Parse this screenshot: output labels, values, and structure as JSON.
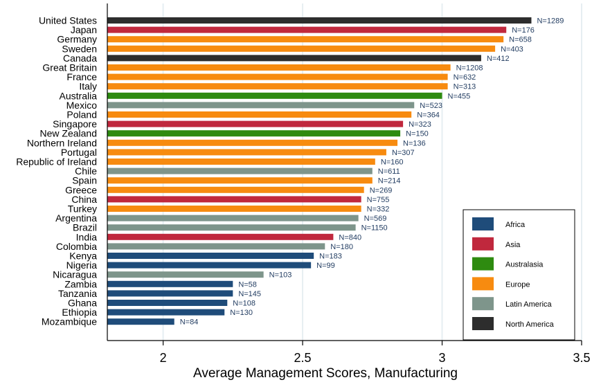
{
  "chart_data": {
    "type": "bar",
    "orientation": "horizontal",
    "xlabel": "Average Management Scores, Manufacturing",
    "ylabel": "",
    "xlim": [
      1.8,
      3.5
    ],
    "xticks": [
      2,
      2.5,
      3,
      3.5
    ],
    "xtick_labels": [
      "2",
      "2.5",
      "3",
      "3.5"
    ],
    "grid": "vertical",
    "legend_position": "bottom-right",
    "colors": {
      "Africa": "#1f4c7a",
      "Asia": "#c0283d",
      "Australasia": "#2e8b10",
      "Europe": "#f78b10",
      "Latin America": "#7e958b",
      "North America": "#2d2d2d"
    },
    "legend": [
      "Africa",
      "Asia",
      "Australasia",
      "Europe",
      "Latin America",
      "North America"
    ],
    "bars": [
      {
        "country": "United States",
        "value": 3.32,
        "n_label": "N=1289",
        "region": "North America"
      },
      {
        "country": "Japan",
        "value": 3.23,
        "n_label": "N=176",
        "region": "Asia"
      },
      {
        "country": "Germany",
        "value": 3.22,
        "n_label": "N=658",
        "region": "Europe"
      },
      {
        "country": "Sweden",
        "value": 3.19,
        "n_label": "N=403",
        "region": "Europe"
      },
      {
        "country": "Canada",
        "value": 3.14,
        "n_label": "N=412",
        "region": "North America"
      },
      {
        "country": "Great Britain",
        "value": 3.03,
        "n_label": "N=1208",
        "region": "Europe"
      },
      {
        "country": "France",
        "value": 3.02,
        "n_label": "N=632",
        "region": "Europe"
      },
      {
        "country": "Italy",
        "value": 3.02,
        "n_label": "N=313",
        "region": "Europe"
      },
      {
        "country": "Australia",
        "value": 3.0,
        "n_label": "N=455",
        "region": "Australasia"
      },
      {
        "country": "Mexico",
        "value": 2.9,
        "n_label": "N=523",
        "region": "Latin America"
      },
      {
        "country": "Poland",
        "value": 2.89,
        "n_label": "N=364",
        "region": "Europe"
      },
      {
        "country": "Singapore",
        "value": 2.86,
        "n_label": "N=323",
        "region": "Asia"
      },
      {
        "country": "New Zealand",
        "value": 2.85,
        "n_label": "N=150",
        "region": "Australasia"
      },
      {
        "country": "Northern Ireland",
        "value": 2.84,
        "n_label": "N=136",
        "region": "Europe"
      },
      {
        "country": "Portugal",
        "value": 2.8,
        "n_label": "N=307",
        "region": "Europe"
      },
      {
        "country": "Republic of Ireland",
        "value": 2.76,
        "n_label": "N=160",
        "region": "Europe"
      },
      {
        "country": "Chile",
        "value": 2.75,
        "n_label": "N=611",
        "region": "Latin America"
      },
      {
        "country": "Spain",
        "value": 2.75,
        "n_label": "N=214",
        "region": "Europe"
      },
      {
        "country": "Greece",
        "value": 2.72,
        "n_label": "N=269",
        "region": "Europe"
      },
      {
        "country": "China",
        "value": 2.71,
        "n_label": "N=755",
        "region": "Asia"
      },
      {
        "country": "Turkey",
        "value": 2.71,
        "n_label": "N=332",
        "region": "Europe"
      },
      {
        "country": "Argentina",
        "value": 2.7,
        "n_label": "N=569",
        "region": "Latin America"
      },
      {
        "country": "Brazil",
        "value": 2.69,
        "n_label": "N=1150",
        "region": "Latin America"
      },
      {
        "country": "India",
        "value": 2.61,
        "n_label": "N=840",
        "region": "Asia"
      },
      {
        "country": "Colombia",
        "value": 2.58,
        "n_label": "N=180",
        "region": "Latin America"
      },
      {
        "country": "Kenya",
        "value": 2.54,
        "n_label": "N=183",
        "region": "Africa"
      },
      {
        "country": "Nigeria",
        "value": 2.53,
        "n_label": "N=99",
        "region": "Africa"
      },
      {
        "country": "Nicaragua",
        "value": 2.36,
        "n_label": "N=103",
        "region": "Latin America"
      },
      {
        "country": "Zambia",
        "value": 2.25,
        "n_label": "N=58",
        "region": "Africa"
      },
      {
        "country": "Tanzania",
        "value": 2.25,
        "n_label": "N=145",
        "region": "Africa"
      },
      {
        "country": "Ghana",
        "value": 2.23,
        "n_label": "N=108",
        "region": "Africa"
      },
      {
        "country": "Ethiopia",
        "value": 2.22,
        "n_label": "N=130",
        "region": "Africa"
      },
      {
        "country": "Mozambique",
        "value": 2.04,
        "n_label": "N=84",
        "region": "Africa"
      }
    ]
  }
}
